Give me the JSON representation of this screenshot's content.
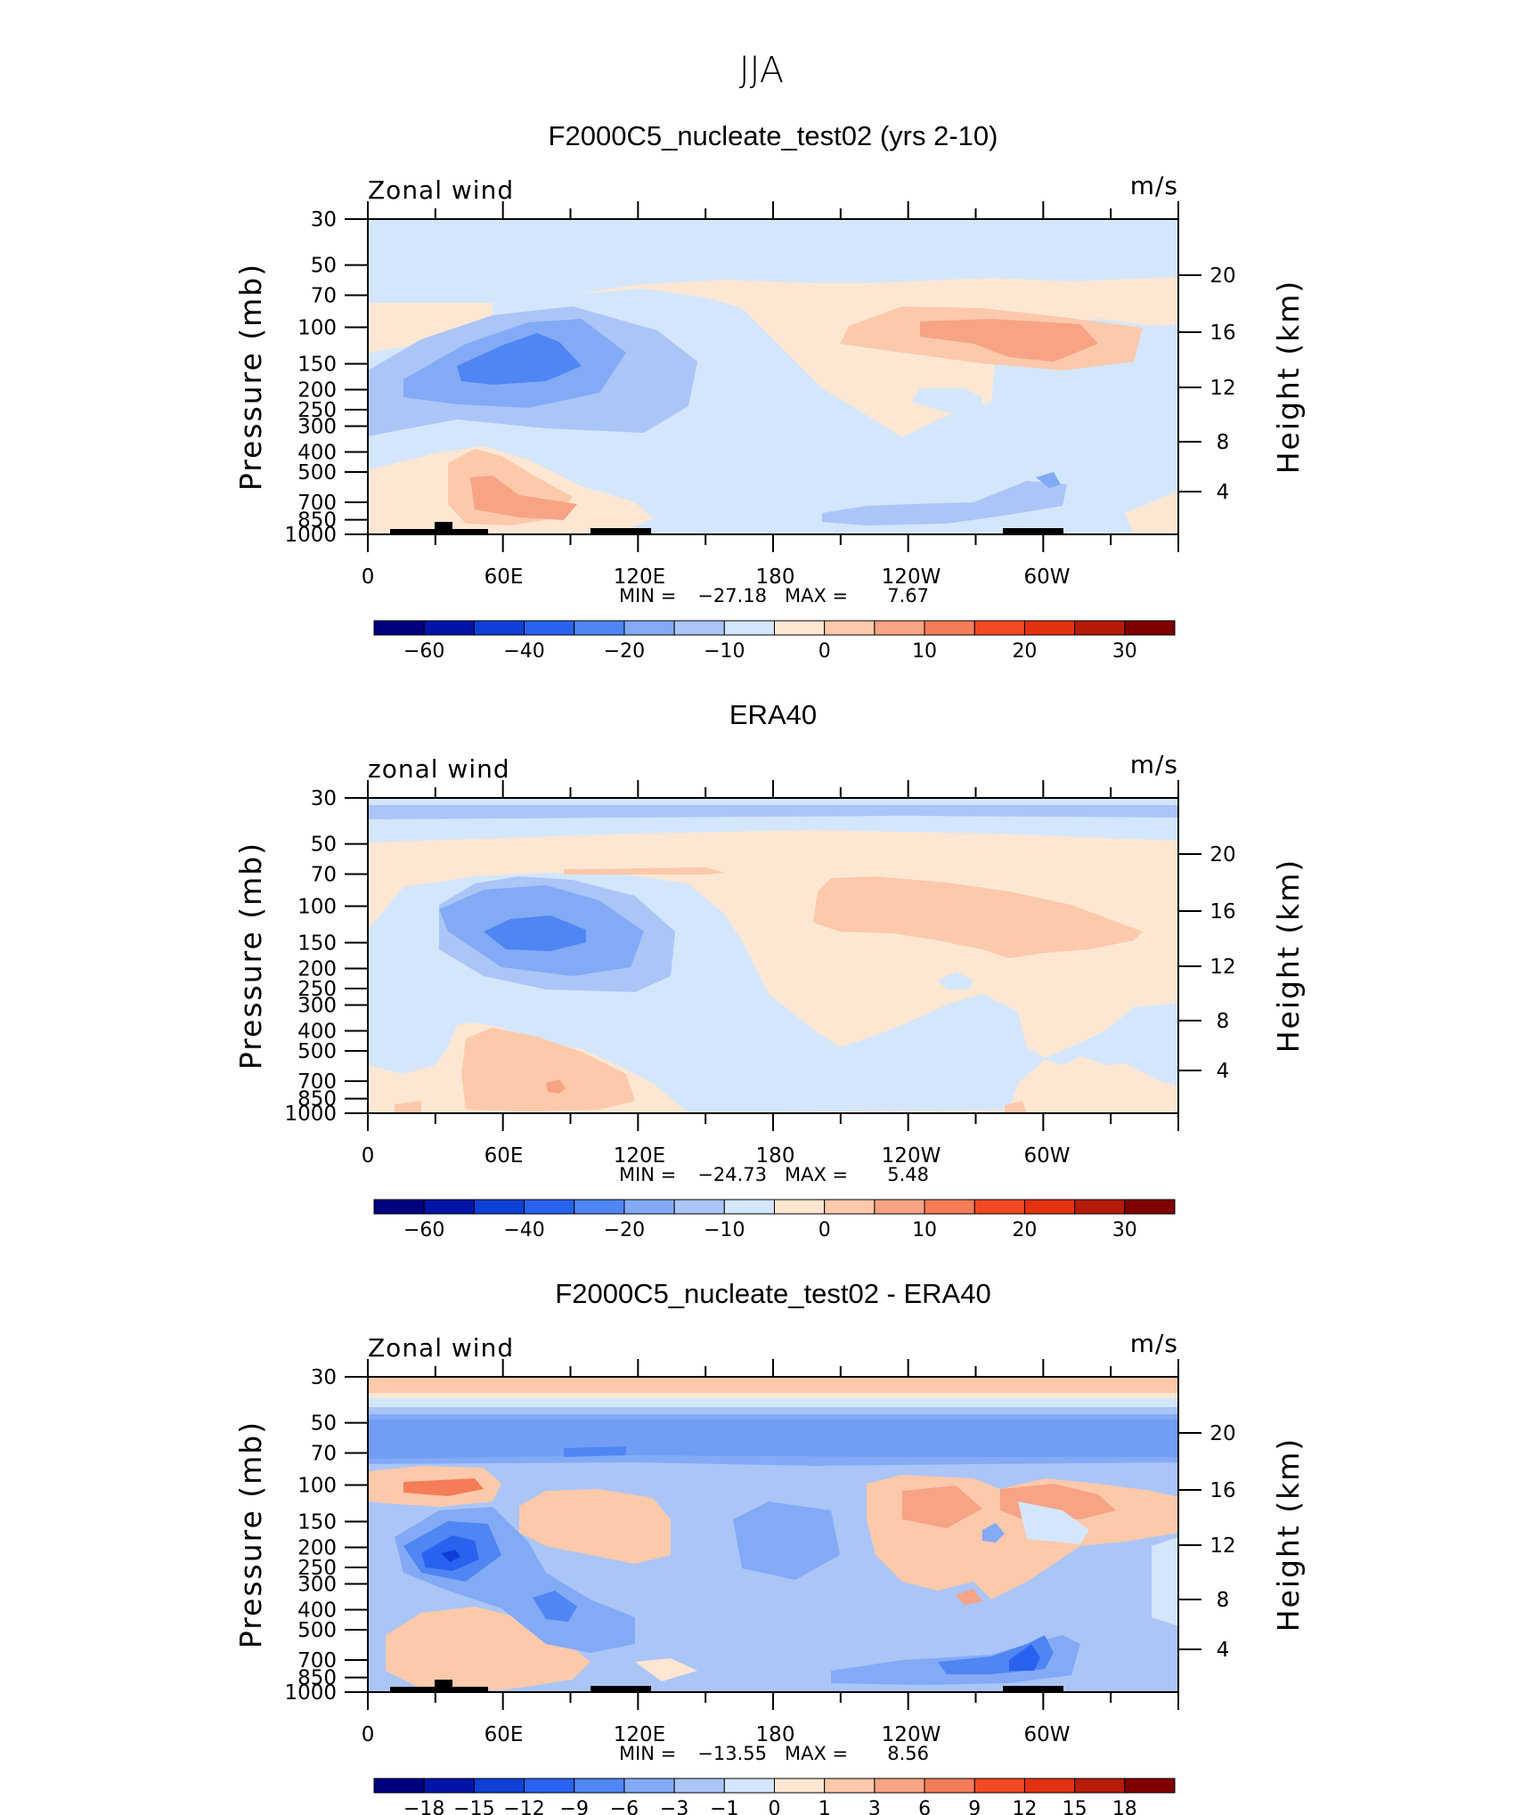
{
  "figure": {
    "title": "JJA"
  },
  "palette": [
    "#000080",
    "#0015a8",
    "#0e3fd6",
    "#2a62f0",
    "#4f86f3",
    "#83aaf5",
    "#abc5f7",
    "#d4e6fb",
    "#fde7d3",
    "#fcc9ab",
    "#f7a385",
    "#f47d58",
    "#f14a24",
    "#e43112",
    "#b51c08",
    "#800000"
  ],
  "chart_data": [
    {
      "type": "contour",
      "title": "F2000C5_nucleate_test02 (yrs 2-10)",
      "variable_label": "Zonal wind",
      "units": "m/s",
      "ylabel": "Pressure (mb)",
      "ylabel_right": "Height (km)",
      "pressure_ticks": [
        "30",
        "50",
        "70",
        "100",
        "150",
        "200",
        "250",
        "300",
        "400",
        "500",
        "700",
        "850",
        "1000"
      ],
      "height_ticks": [
        "20",
        "16",
        "12",
        "8",
        "4"
      ],
      "lon_ticks": [
        "0",
        "60E",
        "120E",
        "180",
        "120W",
        "60W"
      ],
      "min_label": "MIN = ",
      "min": "−27.18",
      "max_label": "MAX = ",
      "max": "7.67",
      "colorbar_labels": [
        "−60",
        "−40",
        "−20",
        "−10",
        "0",
        "10",
        "20",
        "30"
      ]
    },
    {
      "type": "contour",
      "title": "ERA40",
      "variable_label": "zonal wind",
      "units": "m/s",
      "ylabel": "Pressure (mb)",
      "ylabel_right": "Height (km)",
      "pressure_ticks": [
        "30",
        "50",
        "70",
        "100",
        "150",
        "200",
        "250",
        "300",
        "400",
        "500",
        "700",
        "850",
        "1000"
      ],
      "height_ticks": [
        "20",
        "16",
        "12",
        "8",
        "4"
      ],
      "lon_ticks": [
        "0",
        "60E",
        "120E",
        "180",
        "120W",
        "60W"
      ],
      "min_label": "MIN = ",
      "min": "−24.73",
      "max_label": "MAX = ",
      "max": "5.48",
      "colorbar_labels": [
        "−60",
        "−40",
        "−20",
        "−10",
        "0",
        "10",
        "20",
        "30"
      ]
    },
    {
      "type": "contour",
      "title": "F2000C5_nucleate_test02 - ERA40",
      "variable_label": "Zonal wind",
      "units": "m/s",
      "ylabel": "Pressure (mb)",
      "ylabel_right": "Height (km)",
      "pressure_ticks": [
        "30",
        "50",
        "70",
        "100",
        "150",
        "200",
        "250",
        "300",
        "400",
        "500",
        "700",
        "850",
        "1000"
      ],
      "height_ticks": [
        "20",
        "16",
        "12",
        "8",
        "4"
      ],
      "lon_ticks": [
        "0",
        "60E",
        "120E",
        "180",
        "120W",
        "60W"
      ],
      "min_label": "MIN = ",
      "min": "−13.55",
      "max_label": "MAX = ",
      "max": "8.56",
      "colorbar_labels": [
        "−18",
        "−15",
        "−12",
        "−9",
        "−6",
        "−3",
        "−1",
        "0",
        "1",
        "3",
        "6",
        "9",
        "12",
        "15",
        "18"
      ]
    }
  ]
}
